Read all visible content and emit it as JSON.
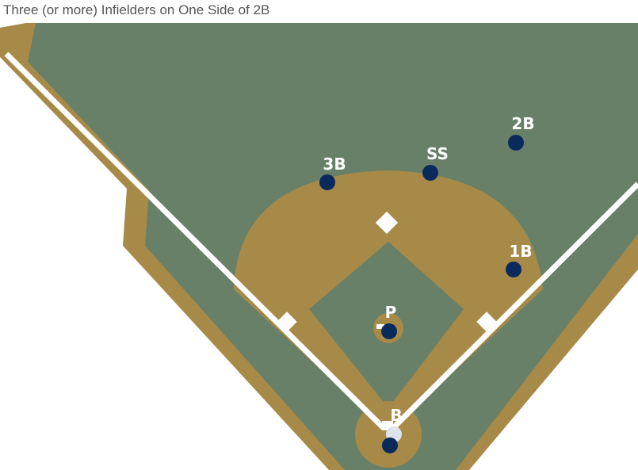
{
  "title": "Three (or more) Infielders on One Side of 2B",
  "colors": {
    "grass": "#688068",
    "dirt": "#a88a48",
    "chalk": "#ffffff",
    "player": "#0a2a5c",
    "background": "#ffffff"
  },
  "players": [
    {
      "id": "2B",
      "label": "2B"
    },
    {
      "id": "SS",
      "label": "SS"
    },
    {
      "id": "3B",
      "label": "3B"
    },
    {
      "id": "1B",
      "label": "1B"
    },
    {
      "id": "P",
      "label": "P"
    },
    {
      "id": "C",
      "label": "B"
    }
  ]
}
